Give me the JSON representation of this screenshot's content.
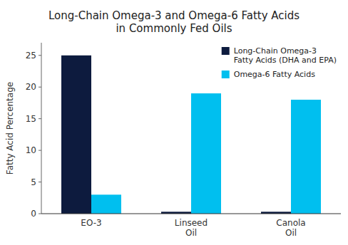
{
  "chart_data": {
    "type": "bar",
    "title": "Long-Chain Omega-3 and Omega-6 Fatty Acids\nin Commonly Fed Oils",
    "y_label": "Fatty Acid Percentage",
    "categories": [
      "EO-3",
      "Linseed\nOil",
      "Canola\nOil"
    ],
    "series": [
      {
        "name": "Long-Chain Omega-3\nFatty Acids (DHA and EPA)",
        "color": "#0d1b3e",
        "values": [
          25,
          0.3,
          0.3
        ]
      },
      {
        "name": "Omega-6 Fatty Acids",
        "color": "#00bfef",
        "values": [
          3,
          19,
          18
        ]
      }
    ],
    "ylim": [
      0,
      27
    ],
    "yticks": [
      0,
      5,
      10,
      15,
      20,
      25
    ],
    "grid": false,
    "legend": "upper right"
  }
}
